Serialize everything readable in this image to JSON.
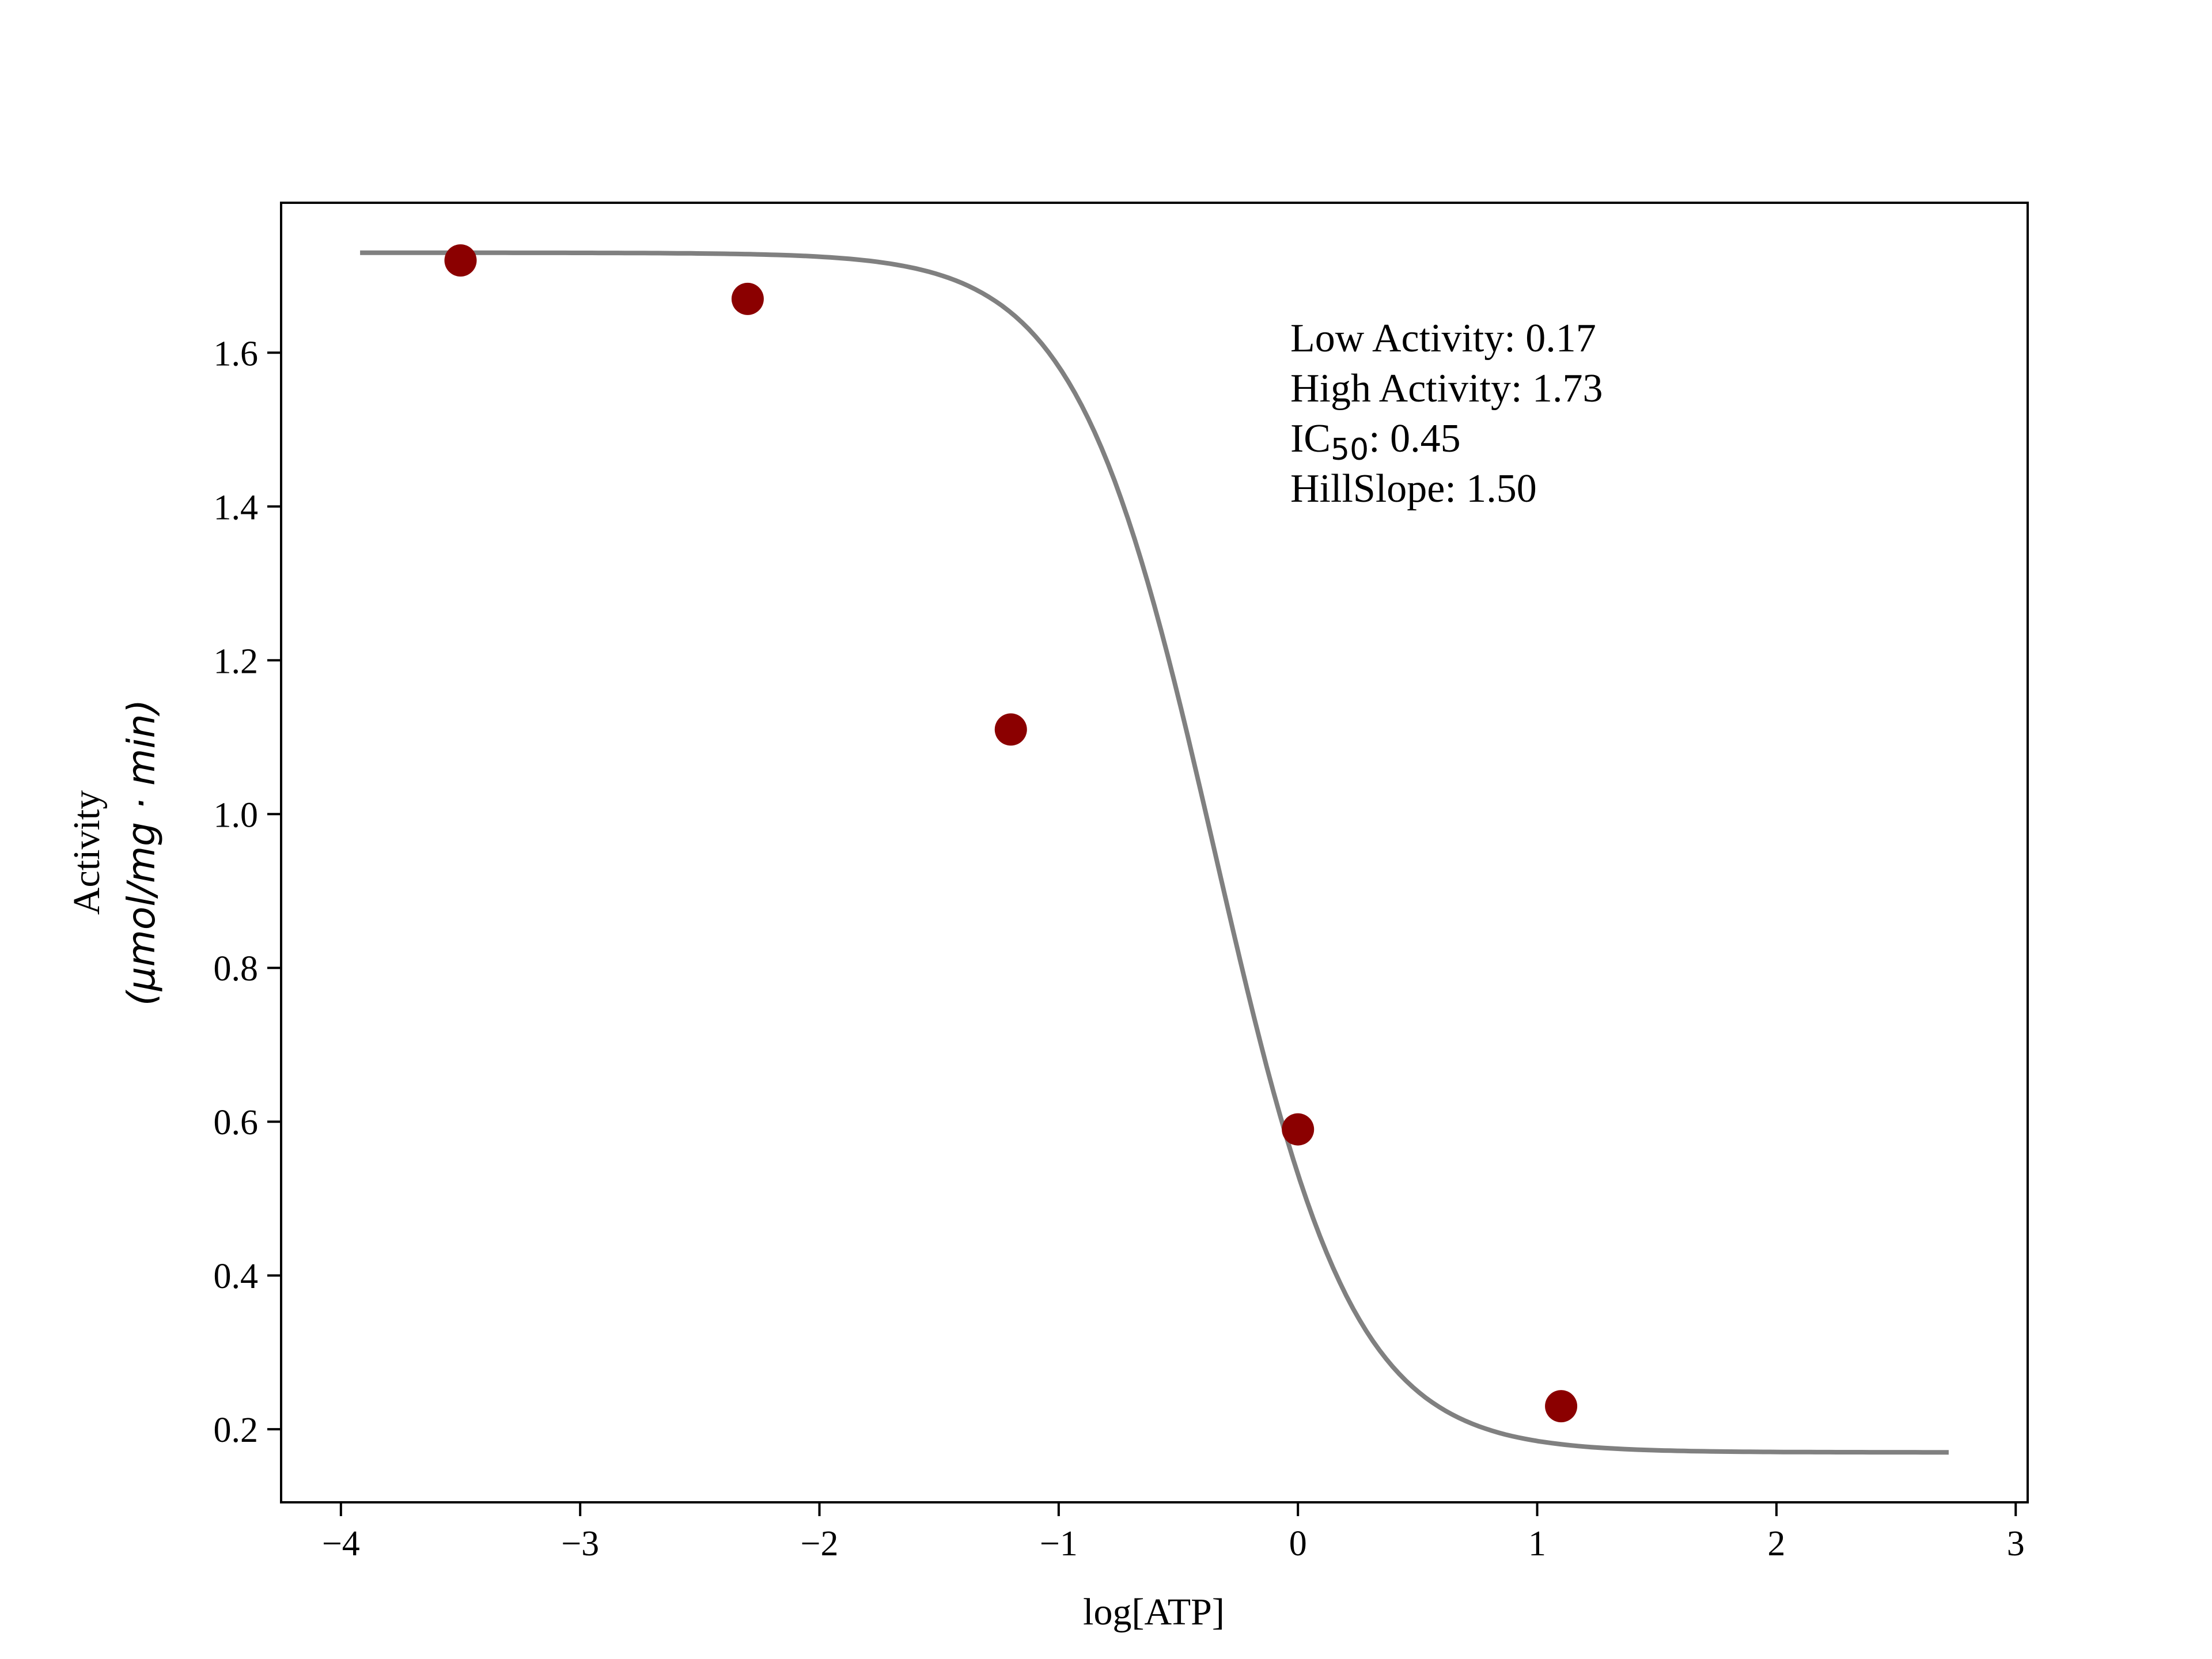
{
  "chart_data": {
    "type": "scatter",
    "title": "",
    "xlabel": "log[ATP]",
    "ylabel": {
      "line1": "Activity",
      "line2": "(μmol/mg · min)"
    },
    "xlim": [
      -4.25,
      3.05
    ],
    "ylim": [
      0.105,
      1.795
    ],
    "xticks": [
      -4,
      -3,
      -2,
      -1,
      0,
      1,
      2,
      3
    ],
    "xtick_labels": [
      "−4",
      "−3",
      "−2",
      "−1",
      "0",
      "1",
      "2",
      "3"
    ],
    "yticks": [
      0.2,
      0.4,
      0.6,
      0.8,
      1.0,
      1.2,
      1.4,
      1.6
    ],
    "ytick_labels": [
      "0.2",
      "0.4",
      "0.6",
      "0.8",
      "1.0",
      "1.2",
      "1.4",
      "1.6"
    ],
    "grid": false,
    "points": [
      {
        "x": -3.5,
        "y": 1.72
      },
      {
        "x": -2.3,
        "y": 1.67
      },
      {
        "x": -1.2,
        "y": 1.11
      },
      {
        "x": 0.0,
        "y": 0.59
      },
      {
        "x": 1.1,
        "y": 0.23
      }
    ],
    "fit": {
      "model": "four-parameter logistic",
      "bottom": 0.17,
      "top": 1.73,
      "ic50": 0.45,
      "hill_slope": 1.5,
      "x_range": [
        -3.92,
        2.72
      ]
    },
    "annotation": {
      "line1": "Low Activity: 0.17",
      "line2": "High Activity: 1.73",
      "line3_prefix": "IC",
      "line3_sub": "50",
      "line3_suffix": ": 0.45",
      "line4": "HillSlope: 1.50"
    },
    "colors": {
      "points": "#8b0000",
      "curve": "#808080",
      "axes": "#000000"
    }
  }
}
